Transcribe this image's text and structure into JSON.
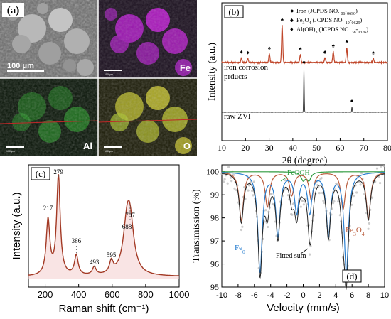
{
  "panels": {
    "a": {
      "label": "(a)",
      "scale_bar_text": "100 μm",
      "maps": [
        {
          "name": "sem",
          "element": ""
        },
        {
          "name": "fe-map",
          "element": "Fe",
          "color": "#c21ad6"
        },
        {
          "name": "al-map",
          "element": "Al",
          "color": "#2fd02f"
        },
        {
          "name": "o-map",
          "element": "O",
          "color": "#e4e030"
        }
      ],
      "small_scale_texts": [
        "100 μm",
        "100 μm",
        "100 μm"
      ]
    }
  },
  "chart_data": [
    {
      "id": "b",
      "type": "line",
      "panel_label": "(b)",
      "xlabel": "2θ (degree)",
      "ylabel": "Intensity (a.u.)",
      "xlim": [
        10,
        80
      ],
      "xticks": [
        10,
        20,
        30,
        40,
        50,
        60,
        70,
        80
      ],
      "legend": [
        {
          "symbol": "●",
          "text": "Iron (JCPDS NO. 06-0696)"
        },
        {
          "symbol": "♠",
          "text": "Fe3O4 (JCPDS NO. 19-0629)"
        },
        {
          "symbol": "♦",
          "text": "Al(OH)3 (JCPDS NO. 38-0376)"
        }
      ],
      "series": [
        {
          "name": "iron corrosion prducts",
          "color": "#c0472b",
          "peaks": [
            [
              18.3,
              0.12
            ],
            [
              21.0,
              0.1
            ],
            [
              30.1,
              0.22
            ],
            [
              35.5,
              0.95
            ],
            [
              43.2,
              0.2
            ],
            [
              53.6,
              0.12
            ],
            [
              57.1,
              0.28
            ],
            [
              62.8,
              0.38
            ],
            [
              74.0,
              0.1
            ]
          ],
          "markers": [
            [
              18.3,
              "♦"
            ],
            [
              21.0,
              "♦"
            ],
            [
              30.1,
              "♠"
            ],
            [
              35.5,
              "♠"
            ],
            [
              43.2,
              "♠"
            ],
            [
              53.6,
              "♠"
            ],
            [
              57.1,
              "♠"
            ],
            [
              62.8,
              "♠"
            ],
            [
              74.0,
              "♠"
            ]
          ]
        },
        {
          "name": "raw ZVI",
          "color": "#333333",
          "peaks": [
            [
              44.7,
              1.0
            ],
            [
              65.0,
              0.12
            ]
          ],
          "markers": [
            [
              44.7,
              "●"
            ],
            [
              65.0,
              "●"
            ]
          ]
        }
      ],
      "series_labels": [
        "iron corrosion",
        "prducts",
        "raw ZVI"
      ]
    },
    {
      "id": "c",
      "type": "line",
      "panel_label": "(c)",
      "xlabel": "Raman shift (cm⁻¹)",
      "ylabel": "Intensity (a.u.)",
      "xlim": [
        100,
        1000
      ],
      "xticks": [
        200,
        400,
        600,
        800,
        1000
      ],
      "color": "#a33a25",
      "peaks": [
        [
          217,
          0.55
        ],
        [
          279,
          1.0
        ],
        [
          386,
          0.2
        ],
        [
          493,
          0.08
        ],
        [
          595,
          0.12
        ],
        [
          688,
          0.4
        ],
        [
          707,
          0.45
        ]
      ],
      "peak_labels": [
        "217",
        "279",
        "386",
        "493",
        "595",
        "688",
        "707"
      ]
    },
    {
      "id": "d",
      "type": "line",
      "panel_label": "(d)",
      "xlabel": "Velocity (mm/s)",
      "ylabel": "Transimission (%)",
      "xlim": [
        -10,
        10
      ],
      "ylim": [
        95,
        100.3
      ],
      "xticks": [
        -10,
        -8,
        -6,
        -4,
        -2,
        0,
        2,
        4,
        6,
        8,
        10
      ],
      "yticks": [
        95,
        96,
        97,
        98,
        99,
        100
      ],
      "component_labels": [
        "FeOOH",
        "Fe3O4",
        "Fe0",
        "Fitted sum"
      ],
      "components": [
        {
          "name": "FeOOH",
          "color": "#2e9a3e",
          "lines": [
            [
              0.0,
              0.35
            ],
            [
              0.7,
              0.35
            ]
          ]
        },
        {
          "name": "Fe3O4",
          "color": "#b85a3a",
          "lines": [
            [
              -7.6,
              2.1
            ],
            [
              -4.4,
              1.5
            ],
            [
              -1.4,
              1.0
            ],
            [
              1.0,
              1.2
            ],
            [
              4.9,
              1.6
            ],
            [
              8.0,
              2.0
            ]
          ]
        },
        {
          "name": "Fe0",
          "color": "#2a7fd0",
          "lines": [
            [
              -5.3,
              4.3
            ],
            [
              -3.1,
              2.7
            ],
            [
              -0.8,
              1.7
            ],
            [
              0.8,
              1.7
            ],
            [
              3.1,
              2.7
            ],
            [
              5.3,
              4.3
            ]
          ]
        }
      ]
    }
  ]
}
